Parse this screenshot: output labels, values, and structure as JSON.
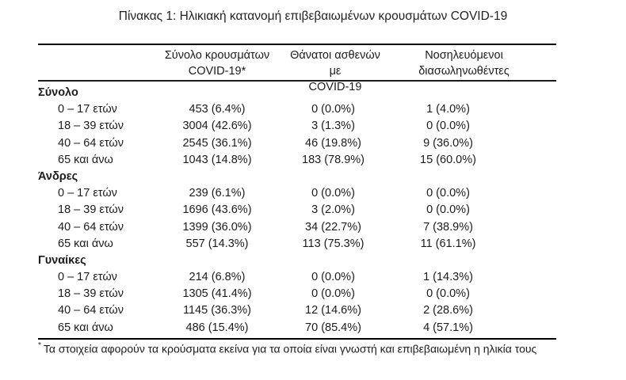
{
  "title": "Πίνακας 1: Ηλικιακή κατανομή επιβεβαιωμένων κρουσμάτων COVID-19",
  "table": {
    "column_headers": [
      {
        "line1": "Σύνολο κρουσμάτων",
        "line2": "COVID-19*"
      },
      {
        "line1": "Θάνατοι ασθενών με",
        "line2": "COVID-19"
      },
      {
        "line1": "Νοσηλευόμενοι",
        "line2": "διασωληνωθέντες"
      }
    ],
    "sections": [
      {
        "label": "Σύνολο",
        "rows": [
          {
            "age": "0 – 17 ετών",
            "cases": "453 (6.4%)",
            "deaths": "0 (0.0%)",
            "intubated": "1 (4.0%)"
          },
          {
            "age": "18 – 39 ετών",
            "cases": "3004 (42.6%)",
            "deaths": "3 (1.3%)",
            "intubated": "0 (0.0%)"
          },
          {
            "age": "40 – 64 ετών",
            "cases": "2545 (36.1%)",
            "deaths": "46 (19.8%)",
            "intubated": "9 (36.0%)"
          },
          {
            "age": "65 και άνω",
            "cases": "1043 (14.8%)",
            "deaths": "183 (78.9%)",
            "intubated": "15 (60.0%)"
          }
        ]
      },
      {
        "label": "Άνδρες",
        "rows": [
          {
            "age": "0 – 17 ετών",
            "cases": "239 (6.1%)",
            "deaths": "0 (0.0%)",
            "intubated": "0 (0.0%)"
          },
          {
            "age": "18 – 39 ετών",
            "cases": "1696 (43.6%)",
            "deaths": "3 (2.0%)",
            "intubated": "0 (0.0%)"
          },
          {
            "age": "40 – 64 ετών",
            "cases": "1399 (36.0%)",
            "deaths": "34 (22.7%)",
            "intubated": "7 (38.9%)"
          },
          {
            "age": "65 και άνω",
            "cases": "557 (14.3%)",
            "deaths": "113 (75.3%)",
            "intubated": "11 (61.1%)"
          }
        ]
      },
      {
        "label": "Γυναίκες",
        "rows": [
          {
            "age": "0 – 17 ετών",
            "cases": "214 (6.8%)",
            "deaths": "0 (0.0%)",
            "intubated": "1 (14.3%)"
          },
          {
            "age": "18 – 39 ετών",
            "cases": "1305 (41.4%)",
            "deaths": "0 (0.0%)",
            "intubated": "0 (0.0%)"
          },
          {
            "age": "40 – 64 ετών",
            "cases": "1145 (36.3%)",
            "deaths": "12 (14.6%)",
            "intubated": "2 (28.6%)"
          },
          {
            "age": "65 και άνω",
            "cases": "486 (15.4%)",
            "deaths": "70 (85.4%)",
            "intubated": "4 (57.1%)"
          }
        ]
      }
    ],
    "footnote_marker": "*",
    "footnote": "Τα στοιχεία αφορούν τα κρούσματα εκείνα για τα οποία είναι γνωστή και επιβεβαιωμένη η ηλικία τους"
  },
  "colors": {
    "background": "#ffffff",
    "text": "#1c1c1c",
    "border": "#000000"
  }
}
